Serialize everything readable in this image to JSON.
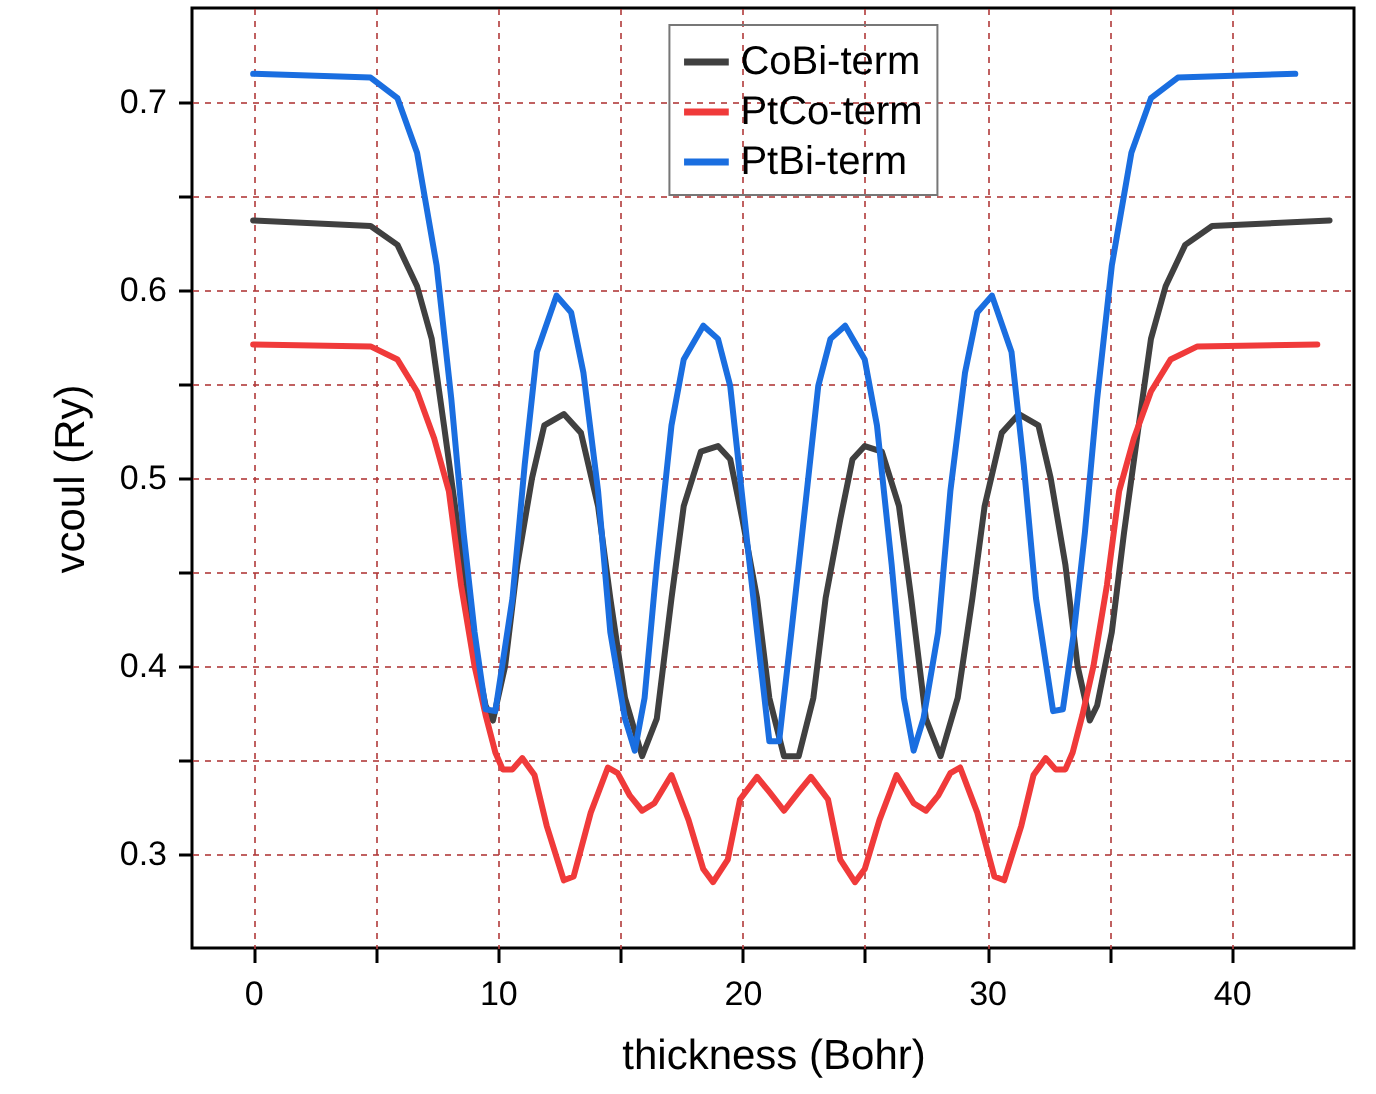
{
  "chart_data": {
    "type": "line",
    "xlabel": "thickness (Bohr)",
    "ylabel": "vcoul (Ry)",
    "xlim": [
      -2.5,
      45
    ],
    "ylim": [
      0.25,
      0.75
    ],
    "xticks": [
      0,
      {
        "value": 5,
        "label": null
      },
      10,
      {
        "value": 15,
        "label": null
      },
      20,
      {
        "value": 25,
        "label": null
      },
      30,
      {
        "value": 35,
        "label": null
      },
      40
    ],
    "yticks": [
      0.3,
      {
        "value": 0.35,
        "label": null
      },
      0.4,
      {
        "value": 0.45,
        "label": null
      },
      0.5,
      {
        "value": 0.55,
        "label": null
      },
      0.6,
      {
        "value": 0.65,
        "label": null
      },
      0.7
    ],
    "grid": true,
    "legend": "top",
    "marker": "none",
    "line_style": "solid",
    "series": [
      {
        "name": "CoBi-term",
        "color": "#404040",
        "x": [
          0,
          4.8,
          5.9,
          6.7,
          7.3,
          7.8,
          8.4,
          8.9,
          9.5,
          9.8,
          10.3,
          10.8,
          11.4,
          11.9,
          12.7,
          13.4,
          14.1,
          14.6,
          15.2,
          15.9,
          16.5,
          17.1,
          17.6,
          18.3,
          19.0,
          19.5,
          20.0,
          20.6,
          21.1,
          21.7,
          22.3,
          22.9,
          23.4,
          24.0,
          24.5,
          25.0,
          25.7,
          26.4,
          26.9,
          27.5,
          28.1,
          28.8,
          29.4,
          29.9,
          30.6,
          31.3,
          32.1,
          32.6,
          33.2,
          33.7,
          34.2,
          34.5,
          35.1,
          35.6,
          36.2,
          36.7,
          37.3,
          38.1,
          39.2,
          44.0
        ],
        "values": [
          0.637,
          0.634,
          0.624,
          0.602,
          0.574,
          0.528,
          0.471,
          0.418,
          0.379,
          0.371,
          0.4,
          0.454,
          0.5,
          0.528,
          0.534,
          0.524,
          0.485,
          0.436,
          0.383,
          0.352,
          0.372,
          0.436,
          0.485,
          0.514,
          0.517,
          0.51,
          0.478,
          0.436,
          0.383,
          0.352,
          0.352,
          0.383,
          0.436,
          0.478,
          0.51,
          0.517,
          0.514,
          0.485,
          0.436,
          0.372,
          0.352,
          0.383,
          0.436,
          0.485,
          0.524,
          0.534,
          0.528,
          0.5,
          0.454,
          0.4,
          0.371,
          0.379,
          0.418,
          0.471,
          0.528,
          0.574,
          0.602,
          0.624,
          0.634,
          0.637
        ]
      },
      {
        "name": "PtCo-term",
        "color": "#f03a3a",
        "x": [
          0,
          4.8,
          5.9,
          6.7,
          7.4,
          8.0,
          8.5,
          9.05,
          9.5,
          9.9,
          10.2,
          10.6,
          11.0,
          11.5,
          12.0,
          12.7,
          13.1,
          13.8,
          14.5,
          14.9,
          15.4,
          15.9,
          16.4,
          17.1,
          17.8,
          18.4,
          18.8,
          19.4,
          19.9,
          20.6,
          21.1,
          21.7,
          22.3,
          22.8,
          23.5,
          24.0,
          24.6,
          25.0,
          25.6,
          26.3,
          27.0,
          27.5,
          28.0,
          28.5,
          28.9,
          29.6,
          30.3,
          30.7,
          31.4,
          31.9,
          32.4,
          32.8,
          33.2,
          33.5,
          33.9,
          34.35,
          34.9,
          35.4,
          36.0,
          36.7,
          37.5,
          38.6,
          43.5
        ],
        "values": [
          0.571,
          0.57,
          0.563,
          0.546,
          0.521,
          0.493,
          0.443,
          0.4,
          0.374,
          0.354,
          0.345,
          0.345,
          0.351,
          0.342,
          0.315,
          0.286,
          0.288,
          0.322,
          0.346,
          0.343,
          0.331,
          0.323,
          0.327,
          0.342,
          0.318,
          0.292,
          0.285,
          0.297,
          0.329,
          0.341,
          0.333,
          0.323,
          0.333,
          0.341,
          0.329,
          0.297,
          0.285,
          0.292,
          0.318,
          0.342,
          0.327,
          0.323,
          0.331,
          0.343,
          0.346,
          0.322,
          0.288,
          0.286,
          0.315,
          0.342,
          0.351,
          0.345,
          0.345,
          0.354,
          0.374,
          0.4,
          0.443,
          0.493,
          0.521,
          0.546,
          0.563,
          0.57,
          0.571
        ]
      },
      {
        "name": "PtBi-term",
        "color": "#1a6ee0",
        "x": [
          0,
          4.8,
          5.9,
          6.7,
          7.5,
          8.1,
          8.6,
          9.05,
          9.5,
          9.9,
          10.6,
          11.1,
          11.6,
          12.4,
          13.0,
          13.5,
          14.1,
          14.6,
          15.2,
          15.6,
          16.0,
          16.5,
          17.1,
          17.6,
          18.4,
          19.0,
          19.5,
          20.0,
          20.6,
          21.1,
          21.5,
          22.0,
          22.6,
          23.1,
          23.6,
          24.2,
          25.0,
          25.5,
          26.1,
          26.6,
          27.0,
          27.4,
          28.0,
          28.5,
          29.1,
          29.6,
          30.2,
          31.0,
          31.5,
          32.0,
          32.7,
          33.1,
          33.55,
          34.0,
          34.5,
          35.1,
          35.9,
          36.7,
          37.8,
          42.6
        ],
        "values": [
          0.715,
          0.713,
          0.702,
          0.673,
          0.613,
          0.542,
          0.471,
          0.418,
          0.377,
          0.376,
          0.436,
          0.507,
          0.567,
          0.597,
          0.588,
          0.556,
          0.493,
          0.418,
          0.372,
          0.355,
          0.383,
          0.454,
          0.528,
          0.563,
          0.581,
          0.574,
          0.549,
          0.489,
          0.418,
          0.36,
          0.36,
          0.418,
          0.489,
          0.549,
          0.574,
          0.581,
          0.563,
          0.528,
          0.454,
          0.383,
          0.355,
          0.372,
          0.418,
          0.493,
          0.556,
          0.588,
          0.597,
          0.567,
          0.507,
          0.436,
          0.376,
          0.377,
          0.418,
          0.471,
          0.542,
          0.613,
          0.673,
          0.702,
          0.713,
          0.715
        ]
      }
    ]
  }
}
